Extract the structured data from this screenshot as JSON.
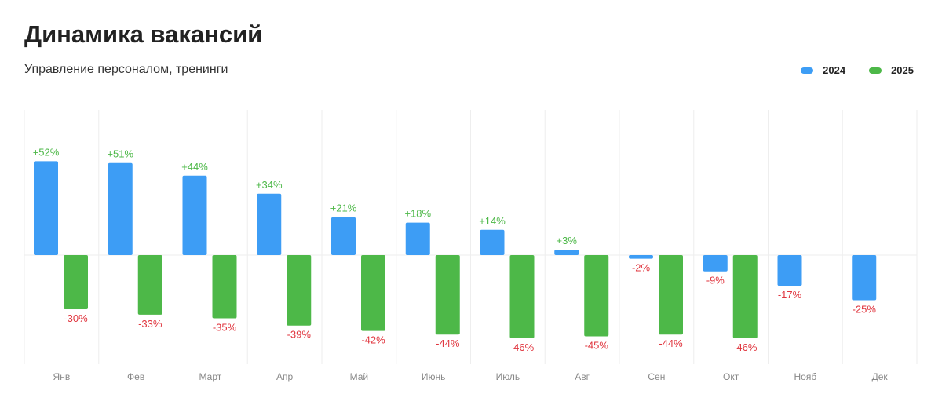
{
  "header": {
    "title": "Динамика вакансий",
    "subtitle": "Управление персоналом, тренинги"
  },
  "colors": {
    "series_2024": "#3d9df5",
    "series_2025": "#4db848",
    "positive_label": "#4db848",
    "negative_label": "#e0353e",
    "grid": "#eeeeee",
    "tick_label": "#888888"
  },
  "chart_data": {
    "type": "bar",
    "categories": [
      "Янв",
      "Фев",
      "Март",
      "Апр",
      "Май",
      "Июнь",
      "Июль",
      "Авг",
      "Сен",
      "Окт",
      "Нояб",
      "Дек"
    ],
    "series": [
      {
        "name": "2024",
        "values": [
          52,
          51,
          44,
          34,
          21,
          18,
          14,
          3,
          -2,
          -9,
          -17,
          -25
        ]
      },
      {
        "name": "2025",
        "values": [
          -30,
          -33,
          -35,
          -39,
          -42,
          -44,
          -46,
          -45,
          -44,
          -46,
          null,
          null
        ]
      }
    ],
    "title": "Динамика вакансий",
    "subtitle": "Управление персоналом, тренинги",
    "xlabel": "",
    "ylabel": "",
    "unit": "%",
    "ylim": [
      -60,
      80
    ],
    "grid": true,
    "legend": "top-right"
  }
}
